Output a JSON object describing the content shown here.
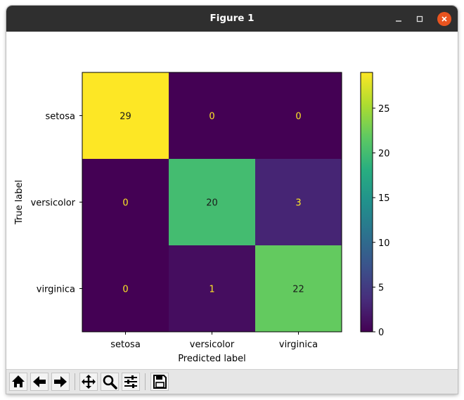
{
  "window": {
    "title": "Figure 1",
    "controls": {
      "minimize_icon": "minimize-icon",
      "maximize_icon": "maximize-icon",
      "close_icon": "close-icon"
    }
  },
  "toolbar": {
    "buttons": [
      {
        "name": "home-button",
        "icon": "home-icon"
      },
      {
        "name": "back-button",
        "icon": "arrow-left-icon"
      },
      {
        "name": "forward-button",
        "icon": "arrow-right-icon"
      },
      {
        "name": "pan-button",
        "icon": "move-icon"
      },
      {
        "name": "zoom-button",
        "icon": "magnifier-icon"
      },
      {
        "name": "configure-subplots-button",
        "icon": "sliders-icon"
      },
      {
        "name": "save-button",
        "icon": "floppy-disk-icon"
      }
    ]
  },
  "chart_data": {
    "type": "heatmap",
    "title": "",
    "xlabel": "Predicted label",
    "ylabel": "True label",
    "x_categories": [
      "setosa",
      "versicolor",
      "virginica"
    ],
    "y_categories": [
      "setosa",
      "versicolor",
      "virginica"
    ],
    "values": [
      [
        29,
        0,
        0
      ],
      [
        0,
        20,
        3
      ],
      [
        0,
        1,
        22
      ]
    ],
    "colormap": "viridis",
    "colorbar": {
      "ticks": [
        0,
        5,
        10,
        15,
        20,
        25
      ],
      "range": [
        0,
        29
      ]
    },
    "text_colors": {
      "on_dark": "#fde725",
      "on_light": "#1a1a1a"
    }
  }
}
